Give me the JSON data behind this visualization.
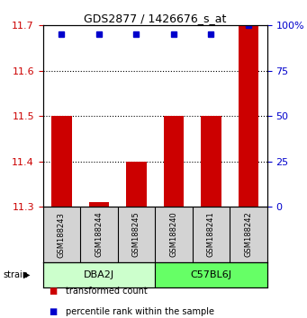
{
  "title": "GDS2877 / 1426676_s_at",
  "samples": [
    "GSM188243",
    "GSM188244",
    "GSM188245",
    "GSM188240",
    "GSM188241",
    "GSM188242"
  ],
  "transformed_counts": [
    11.5,
    11.31,
    11.4,
    11.5,
    11.5,
    11.7
  ],
  "percentile_ranks": [
    95,
    95,
    95,
    95,
    95,
    100
  ],
  "y_min": 11.3,
  "y_max": 11.7,
  "y_ticks": [
    11.3,
    11.4,
    11.5,
    11.6,
    11.7
  ],
  "right_y_ticks": [
    0,
    25,
    50,
    75,
    100
  ],
  "groups": [
    {
      "label": "DBA2J",
      "indices": [
        0,
        1,
        2
      ],
      "color": "#ccffcc"
    },
    {
      "label": "C57BL6J",
      "indices": [
        3,
        4,
        5
      ],
      "color": "#66ff66"
    }
  ],
  "bar_color": "#cc0000",
  "marker_color": "#0000cc",
  "bar_width": 0.55,
  "background_color": "#ffffff",
  "sample_box_color": "#d3d3d3",
  "grid_color": "#000000",
  "left_tick_color": "#cc0000",
  "right_tick_color": "#0000cc",
  "legend_items": [
    {
      "label": "transformed count",
      "color": "#cc0000"
    },
    {
      "label": "percentile rank within the sample",
      "color": "#0000cc"
    }
  ]
}
